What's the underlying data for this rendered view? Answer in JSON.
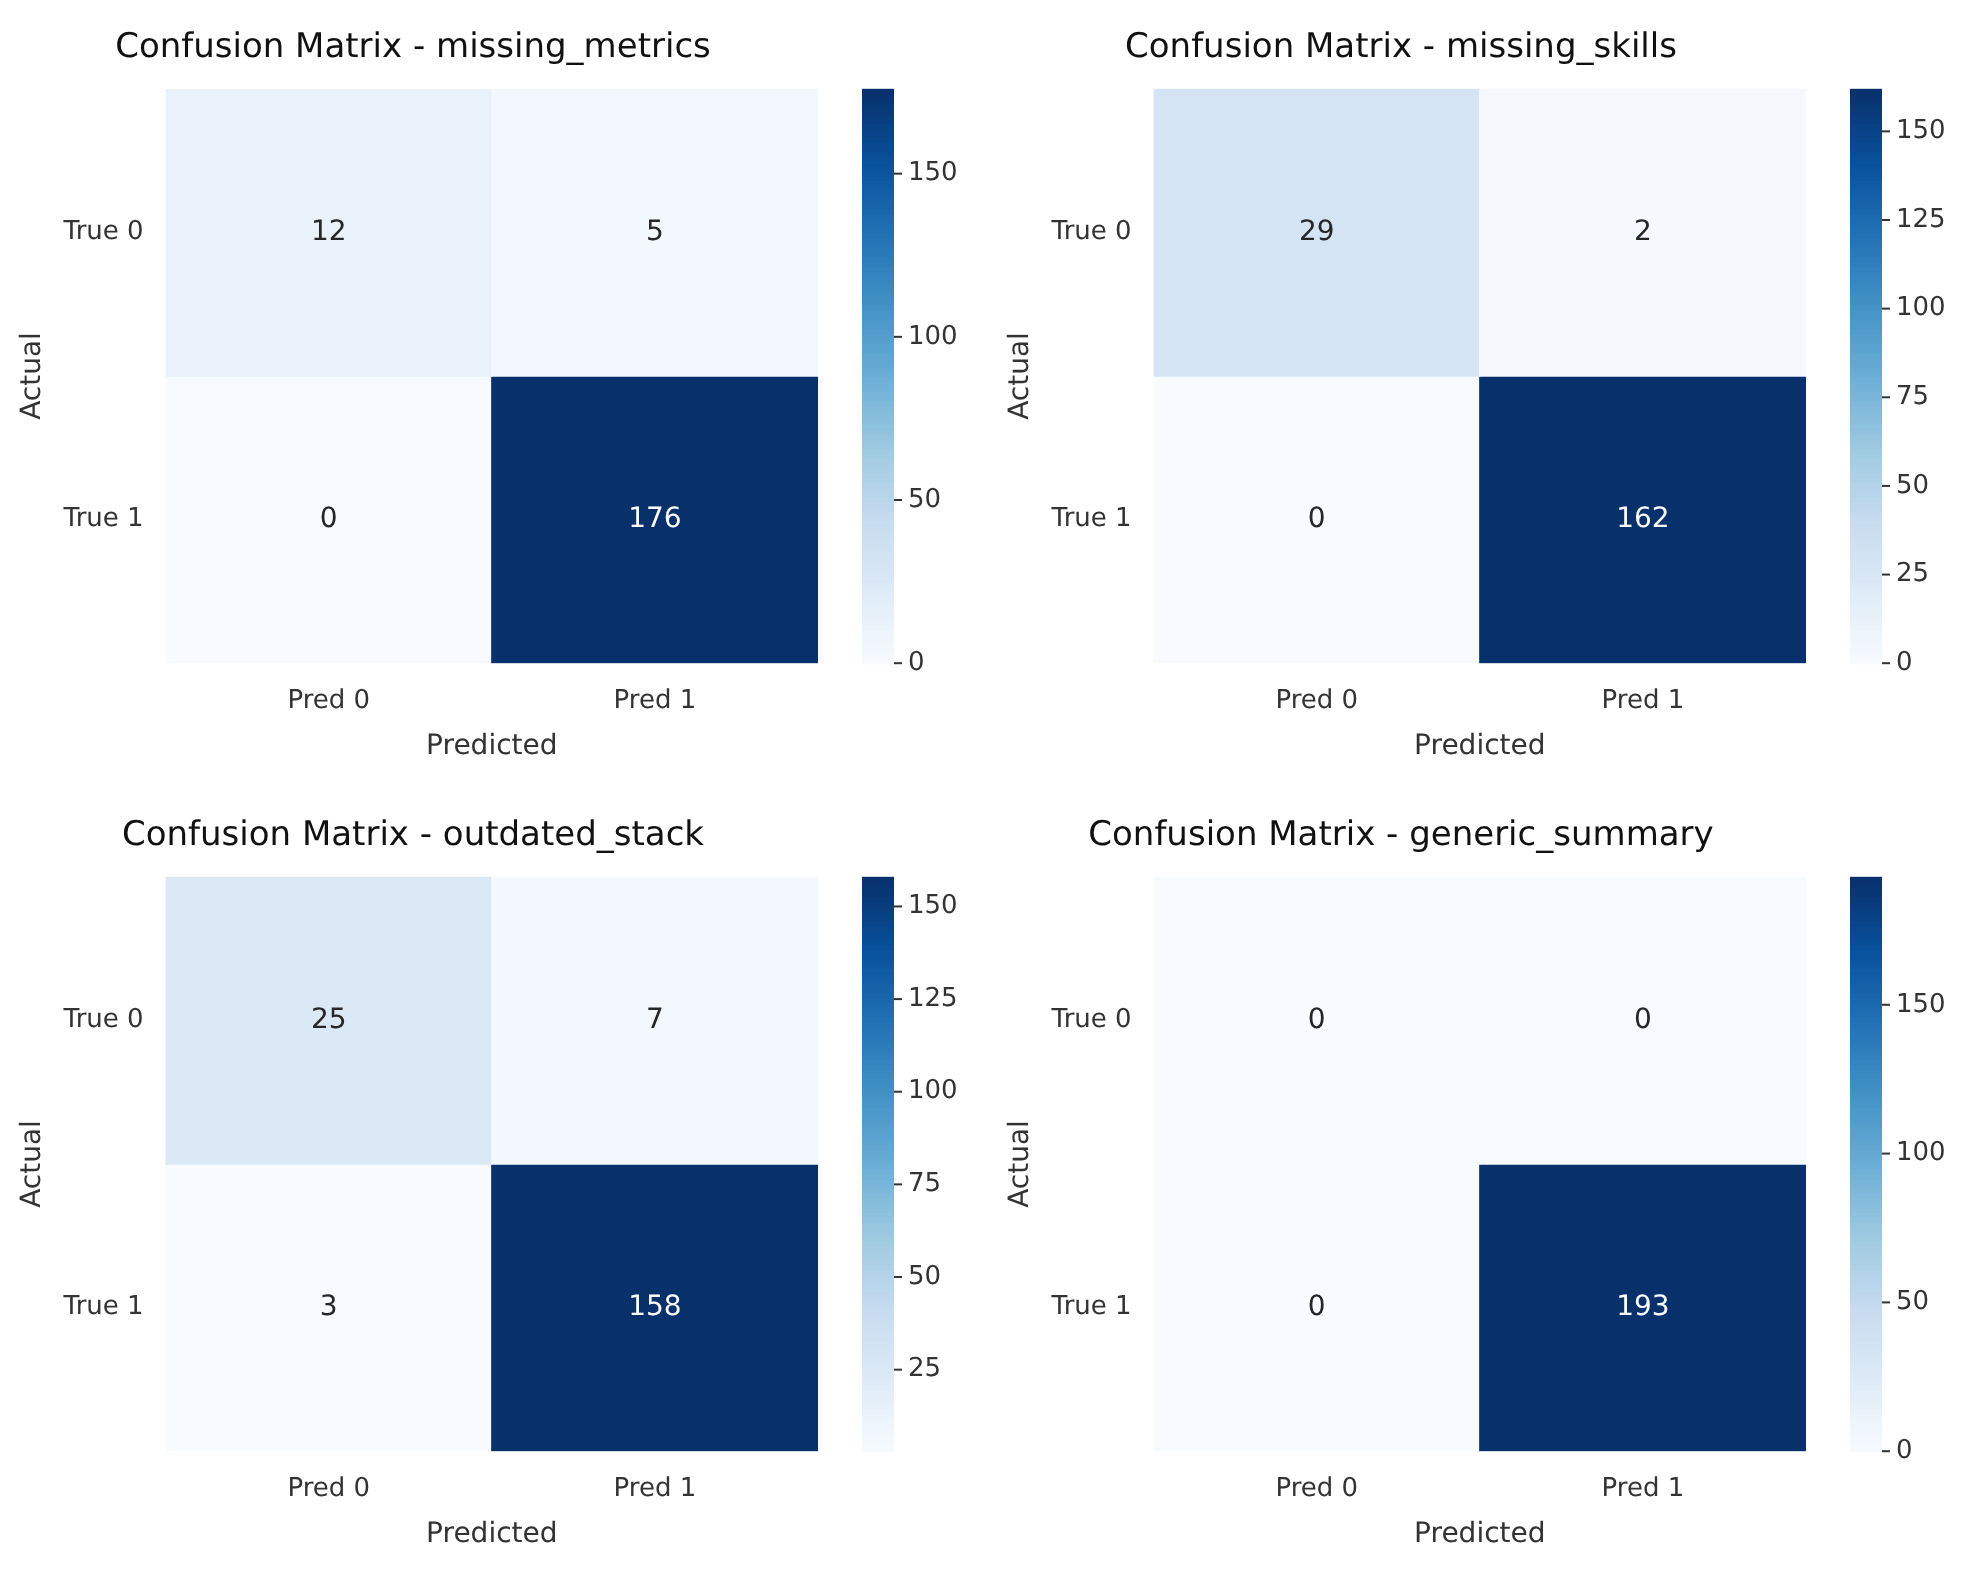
{
  "chart_data": [
    {
      "type": "heatmap",
      "title": "Confusion Matrix - missing_metrics",
      "xlabel": "Predicted",
      "ylabel": "Actual",
      "categories": [
        "Pred 0",
        "Pred 1"
      ],
      "y_categories": [
        "True 0",
        "True 1"
      ],
      "cells": [
        [
          12,
          5
        ],
        [
          0,
          176
        ]
      ],
      "clim": [
        0,
        176
      ],
      "cticks": [
        0,
        50,
        100,
        150
      ],
      "data_labels": true
    },
    {
      "type": "heatmap",
      "title": "Confusion Matrix - missing_skills",
      "xlabel": "Predicted",
      "ylabel": "Actual",
      "categories": [
        "Pred 0",
        "Pred 1"
      ],
      "y_categories": [
        "True 0",
        "True 1"
      ],
      "cells": [
        [
          29,
          2
        ],
        [
          0,
          162
        ]
      ],
      "clim": [
        0,
        162
      ],
      "cticks": [
        0,
        25,
        50,
        75,
        100,
        125,
        150
      ],
      "data_labels": true
    },
    {
      "type": "heatmap",
      "title": "Confusion Matrix - outdated_stack",
      "xlabel": "Predicted",
      "ylabel": "Actual",
      "categories": [
        "Pred 0",
        "Pred 1"
      ],
      "y_categories": [
        "True 0",
        "True 1"
      ],
      "cells": [
        [
          25,
          7
        ],
        [
          3,
          158
        ]
      ],
      "clim": [
        3,
        158
      ],
      "cticks": [
        25,
        50,
        75,
        100,
        125,
        150
      ],
      "data_labels": true
    },
    {
      "type": "heatmap",
      "title": "Confusion Matrix - generic_summary",
      "xlabel": "Predicted",
      "ylabel": "Actual",
      "categories": [
        "Pred 0",
        "Pred 1"
      ],
      "y_categories": [
        "True 0",
        "True 1"
      ],
      "cells": [
        [
          0,
          0
        ],
        [
          0,
          193
        ]
      ],
      "clim": [
        0,
        193
      ],
      "cticks": [
        0,
        50,
        100,
        150
      ],
      "data_labels": true
    }
  ]
}
